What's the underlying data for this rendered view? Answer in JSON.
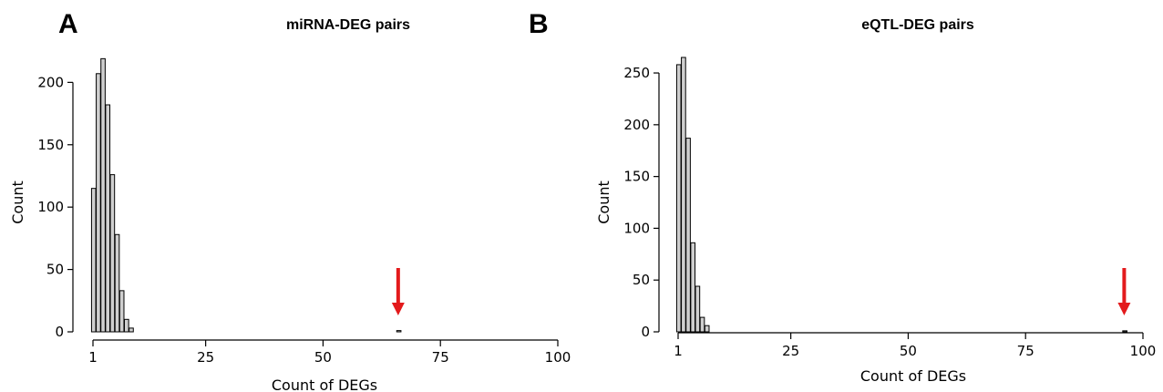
{
  "chart_data": [
    {
      "panel": "A",
      "type": "bar",
      "title": "miRNA-DEG pairs",
      "xlabel": "Count of DEGs",
      "ylabel": "Count",
      "xlim": [
        1,
        100
      ],
      "ylim": [
        0,
        220
      ],
      "x_ticks": [
        1,
        25,
        50,
        75,
        100
      ],
      "y_ticks": [
        0,
        50,
        100,
        150,
        200
      ],
      "bin_width": 1,
      "bins": [
        {
          "x": 1,
          "count": 115
        },
        {
          "x": 2,
          "count": 207
        },
        {
          "x": 3,
          "count": 219
        },
        {
          "x": 4,
          "count": 182
        },
        {
          "x": 5,
          "count": 126
        },
        {
          "x": 6,
          "count": 78
        },
        {
          "x": 7,
          "count": 33
        },
        {
          "x": 8,
          "count": 10
        },
        {
          "x": 9,
          "count": 3
        },
        {
          "x": 66,
          "count": 1
        }
      ],
      "annotation": {
        "type": "arrow",
        "color": "#e31a1c",
        "points_to_x": 66
      },
      "grid": false
    },
    {
      "panel": "B",
      "type": "bar",
      "title": "eQTL-DEG pairs",
      "xlabel": "Count of DEGs",
      "ylabel": "Count",
      "xlim": [
        1,
        100
      ],
      "ylim": [
        0,
        265
      ],
      "x_ticks": [
        1,
        25,
        50,
        75,
        100
      ],
      "y_ticks": [
        0,
        50,
        100,
        150,
        200,
        250
      ],
      "bin_width": 1,
      "bins": [
        {
          "x": 1,
          "count": 258
        },
        {
          "x": 2,
          "count": 265
        },
        {
          "x": 3,
          "count": 187
        },
        {
          "x": 4,
          "count": 86
        },
        {
          "x": 5,
          "count": 44
        },
        {
          "x": 6,
          "count": 14
        },
        {
          "x": 7,
          "count": 6
        },
        {
          "x": 96,
          "count": 1
        }
      ],
      "annotation": {
        "type": "arrow",
        "color": "#e31a1c",
        "points_to_x": 96
      },
      "grid": false
    }
  ]
}
